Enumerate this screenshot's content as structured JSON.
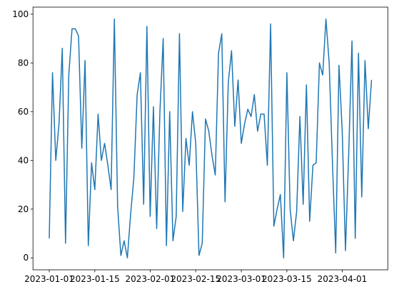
{
  "chart_data": {
    "type": "line",
    "x": [
      "2023-01-01",
      "2023-01-02",
      "2023-01-03",
      "2023-01-04",
      "2023-01-05",
      "2023-01-06",
      "2023-01-07",
      "2023-01-08",
      "2023-01-09",
      "2023-01-10",
      "2023-01-11",
      "2023-01-12",
      "2023-01-13",
      "2023-01-14",
      "2023-01-15",
      "2023-01-16",
      "2023-01-17",
      "2023-01-18",
      "2023-01-19",
      "2023-01-20",
      "2023-01-21",
      "2023-01-22",
      "2023-01-23",
      "2023-01-24",
      "2023-01-25",
      "2023-01-26",
      "2023-01-27",
      "2023-01-28",
      "2023-01-29",
      "2023-01-30",
      "2023-01-31",
      "2023-02-01",
      "2023-02-02",
      "2023-02-03",
      "2023-02-04",
      "2023-02-05",
      "2023-02-06",
      "2023-02-07",
      "2023-02-08",
      "2023-02-09",
      "2023-02-10",
      "2023-02-11",
      "2023-02-12",
      "2023-02-13",
      "2023-02-14",
      "2023-02-15",
      "2023-02-16",
      "2023-02-17",
      "2023-02-18",
      "2023-02-19",
      "2023-02-20",
      "2023-02-21",
      "2023-02-22",
      "2023-02-23",
      "2023-02-24",
      "2023-02-25",
      "2023-02-26",
      "2023-02-27",
      "2023-02-28",
      "2023-03-01",
      "2023-03-02",
      "2023-03-03",
      "2023-03-04",
      "2023-03-05",
      "2023-03-06",
      "2023-03-07",
      "2023-03-08",
      "2023-03-09",
      "2023-03-10",
      "2023-03-11",
      "2023-03-12",
      "2023-03-13",
      "2023-03-14",
      "2023-03-15",
      "2023-03-16",
      "2023-03-17",
      "2023-03-18",
      "2023-03-19",
      "2023-03-20",
      "2023-03-21",
      "2023-03-22",
      "2023-03-23",
      "2023-03-24",
      "2023-03-25",
      "2023-03-26",
      "2023-03-27",
      "2023-03-28",
      "2023-03-29",
      "2023-03-30",
      "2023-03-31",
      "2023-04-01",
      "2023-04-02",
      "2023-04-03",
      "2023-04-04",
      "2023-04-05",
      "2023-04-06",
      "2023-04-07",
      "2023-04-08",
      "2023-04-09",
      "2023-04-10"
    ],
    "series": [
      {
        "color": "#1f77b4",
        "values": [
          8,
          76,
          40,
          55,
          86,
          6,
          75,
          94,
          94,
          91,
          45,
          81,
          5,
          39,
          28,
          59,
          40,
          47,
          38,
          28,
          98,
          21,
          1,
          7,
          0,
          18,
          33,
          67,
          76,
          22,
          95,
          17,
          62,
          12,
          60,
          90,
          5,
          60,
          7,
          17,
          92,
          19,
          49,
          38,
          60,
          47,
          1,
          6,
          57,
          52,
          42,
          34,
          84,
          92,
          23,
          72,
          85,
          54,
          73,
          47,
          55,
          61,
          58,
          67,
          52,
          59,
          59,
          38,
          96,
          13,
          20,
          26,
          0,
          76,
          20,
          7,
          19,
          58,
          22,
          71,
          15,
          38,
          39,
          80,
          75,
          98,
          80,
          39,
          2,
          79,
          52,
          3,
          43,
          89,
          8,
          84,
          25,
          81,
          53,
          73
        ]
      }
    ],
    "xlim": [
      "2022-12-27",
      "2023-04-15"
    ],
    "xticks": [
      "2023-01-01",
      "2023-01-15",
      "2023-02-01",
      "2023-02-15",
      "2023-03-01",
      "2023-03-15",
      "2023-04-01"
    ],
    "ylim": [
      -4.9,
      102.9
    ],
    "yticks": [
      0,
      20,
      40,
      60,
      80,
      100
    ]
  }
}
